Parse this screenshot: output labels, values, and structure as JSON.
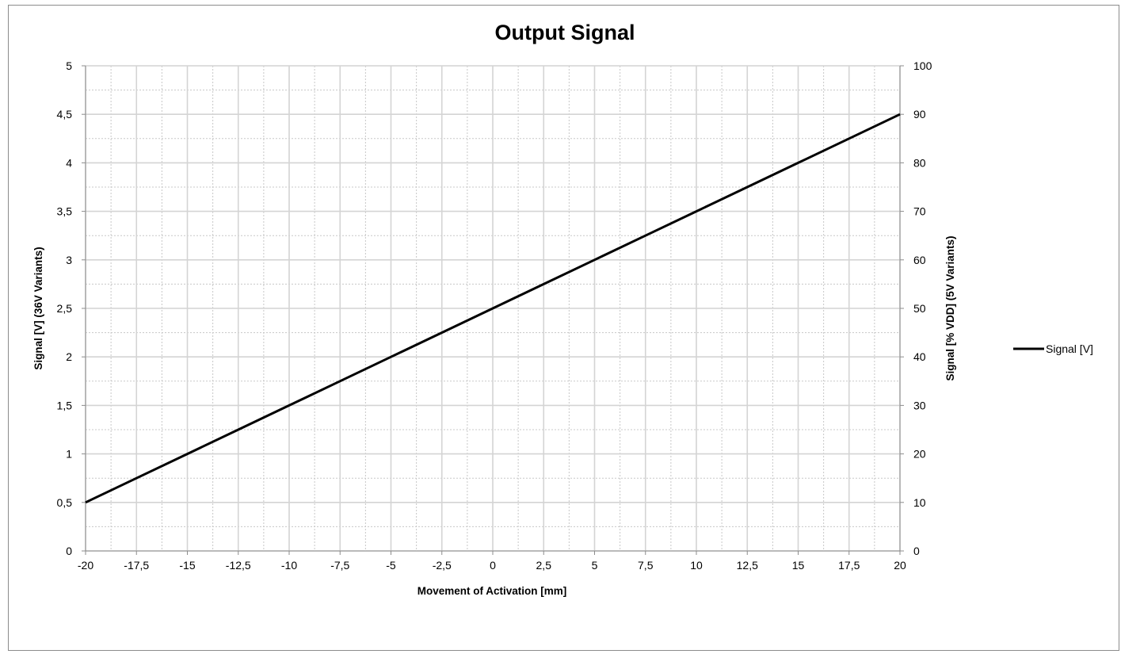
{
  "chart_data": {
    "type": "line",
    "title": "Output Signal",
    "xlabel": "Movement of Activation [mm]",
    "ylabel": "Signal [V] (36V Variants)",
    "y2label": "Signal [% VDD] (5V Variants)",
    "xlim": [
      -20,
      20
    ],
    "ylim": [
      0,
      5
    ],
    "y2lim": [
      0,
      100
    ],
    "x_ticks": [
      "-20",
      "-17,5",
      "-15",
      "-12,5",
      "-10",
      "-7,5",
      "-5",
      "-2,5",
      "0",
      "2,5",
      "5",
      "7,5",
      "10",
      "12,5",
      "15",
      "17,5",
      "20"
    ],
    "y_ticks": [
      "0",
      "0,5",
      "1",
      "1,5",
      "2",
      "2,5",
      "3",
      "3,5",
      "4",
      "4,5",
      "5"
    ],
    "y2_ticks": [
      "0",
      "10",
      "20",
      "30",
      "40",
      "50",
      "60",
      "70",
      "80",
      "90",
      "100"
    ],
    "grid": true,
    "legend_position": "right",
    "series": [
      {
        "name": "Signal [V]",
        "color": "#000000",
        "x": [
          -20,
          -17.5,
          -15,
          -12.5,
          -10,
          -7.5,
          -5,
          -2.5,
          0,
          2.5,
          5,
          7.5,
          10,
          12.5,
          15,
          17.5,
          20
        ],
        "values": [
          0.5,
          0.75,
          1.0,
          1.25,
          1.5,
          1.75,
          2.0,
          2.25,
          2.5,
          2.75,
          3.0,
          3.25,
          3.5,
          3.75,
          4.0,
          4.25,
          4.5
        ]
      }
    ]
  }
}
